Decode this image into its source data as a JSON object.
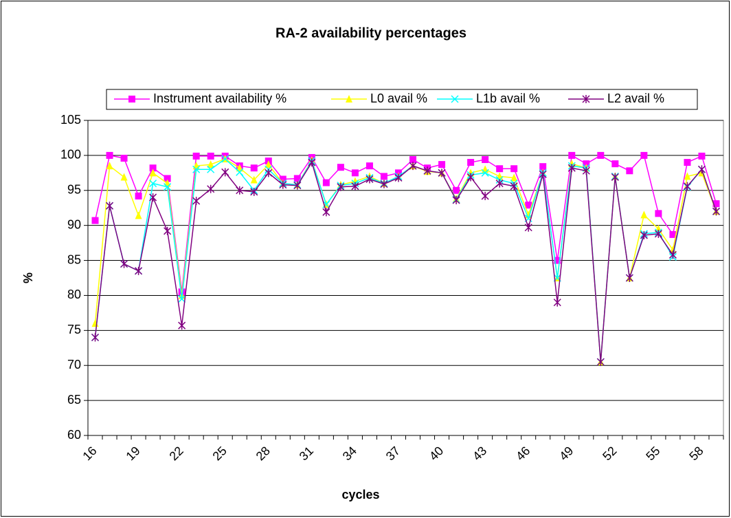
{
  "chart_data": {
    "type": "line",
    "title": "RA-2 availability percentages",
    "x_label": "cycles",
    "y_label": "%",
    "categories": [
      "16",
      null,
      null,
      "19",
      null,
      null,
      "22",
      null,
      null,
      "25",
      null,
      null,
      "28",
      null,
      null,
      "31",
      null,
      null,
      "34",
      null,
      null,
      "37",
      null,
      null,
      "40",
      null,
      null,
      "43",
      null,
      null,
      "46",
      null,
      null,
      "49",
      null,
      null,
      "52",
      null,
      null,
      "55",
      null,
      null,
      "58",
      null
    ],
    "series": [
      {
        "name": "Instrument availability %",
        "color": "#ff00ff",
        "marker": "square",
        "values": [
          90.7,
          100,
          99.6,
          94.2,
          98.2,
          96.7,
          80.5,
          99.9,
          99.9,
          99.9,
          98.5,
          98.2,
          99.2,
          96.6,
          96.7,
          99.7,
          96.1,
          98.3,
          97.5,
          98.5,
          97,
          97.5,
          99.4,
          98.2,
          98.7,
          95,
          99,
          99.4,
          98.1,
          98.1,
          92.9,
          98.4,
          85,
          100,
          98.8,
          100,
          98.8,
          97.8,
          100,
          91.7,
          88.7,
          99,
          99.9,
          93.1
        ]
      },
      {
        "name": "L0 avail %",
        "color": "#ffff00",
        "marker": "triangle",
        "values": [
          76,
          98.5,
          96.9,
          91.4,
          97.5,
          96,
          80,
          98.5,
          98.7,
          99.5,
          98.2,
          96.5,
          98.7,
          96,
          95.8,
          99.3,
          93,
          95.8,
          96.3,
          97,
          96,
          97,
          98.5,
          97.7,
          97.5,
          93.8,
          97.5,
          98,
          97,
          96.8,
          91.5,
          97.5,
          82.5,
          98.8,
          98.2,
          70.5,
          97,
          82.5,
          91.5,
          89.5,
          86.5,
          97,
          97.5,
          92
        ]
      },
      {
        "name": "L1b avail %",
        "color": "#00ffff",
        "marker": "x",
        "values": [
          74,
          92.8,
          84.5,
          83.5,
          96,
          95.5,
          79.5,
          98,
          98,
          99.5,
          97.6,
          95,
          98,
          96,
          95.8,
          99.2,
          93,
          95.7,
          96,
          96.8,
          96,
          97,
          98.5,
          97.8,
          97.5,
          93.7,
          97.2,
          97.5,
          96.5,
          96,
          91,
          97.5,
          82.5,
          98.5,
          98.2,
          70.5,
          97,
          82.5,
          88.8,
          89,
          85.5,
          95.5,
          98,
          92
        ]
      },
      {
        "name": "L2 avail %",
        "color": "#800080",
        "marker": "asterisk",
        "values": [
          74,
          92.8,
          84.5,
          83.5,
          94,
          89.2,
          75.7,
          93.5,
          95.2,
          97.6,
          95,
          94.8,
          97.5,
          95.8,
          95.7,
          99,
          91.9,
          95.5,
          95.6,
          96.6,
          95.9,
          96.8,
          98.5,
          97.8,
          97.5,
          93.6,
          96.9,
          94.2,
          96,
          95.6,
          89.7,
          97.3,
          79,
          98.2,
          97.8,
          70.5,
          96.9,
          82.5,
          88.6,
          88.8,
          85.8,
          95.6,
          98,
          92
        ]
      }
    ],
    "ylim": [
      60,
      105
    ],
    "yticks": [
      60,
      65,
      70,
      75,
      80,
      85,
      90,
      95,
      100,
      105
    ],
    "grid": true,
    "legend": "top"
  }
}
